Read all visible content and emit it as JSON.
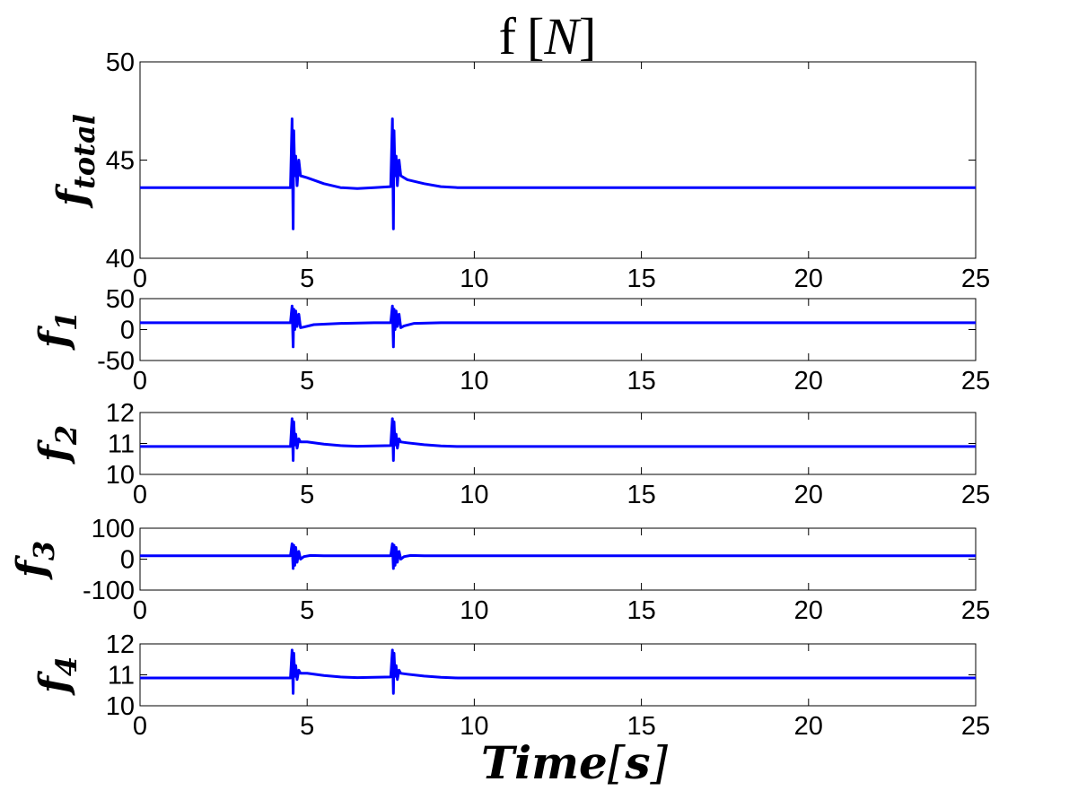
{
  "figure": {
    "title_main": "f",
    "title_unit": "N",
    "xlabel_main": "Time",
    "xlabel_unit": "s"
  },
  "colors": {
    "series": "#0000ff",
    "axes": "#000000",
    "background": "#ffffff"
  },
  "chart_data": [
    {
      "type": "line",
      "ylabel_base": "f",
      "ylabel_sub": "total",
      "xlim": [
        0,
        25
      ],
      "ylim": [
        40,
        50
      ],
      "xticks": [
        "0",
        "5",
        "10",
        "15",
        "20",
        "25"
      ],
      "yticks": [
        "40",
        "45",
        "50"
      ],
      "grid": false,
      "series": [
        {
          "color": "#0000ff",
          "x": [
            0,
            4.5,
            4.55,
            4.58,
            4.6,
            4.63,
            4.66,
            4.7,
            4.75,
            4.8,
            5.0,
            5.5,
            6.0,
            6.5,
            7.0,
            7.5,
            7.55,
            7.58,
            7.6,
            7.63,
            7.66,
            7.7,
            7.75,
            7.8,
            8.0,
            8.5,
            9.0,
            9.5,
            10,
            11,
            12,
            15,
            20,
            25
          ],
          "y": [
            43.6,
            43.6,
            47.1,
            41.5,
            46.5,
            44.2,
            45.2,
            43.7,
            45.0,
            44.2,
            44.1,
            43.8,
            43.6,
            43.55,
            43.6,
            43.65,
            47.1,
            41.5,
            46.5,
            44.2,
            45.2,
            43.7,
            45.0,
            44.2,
            44.0,
            43.8,
            43.65,
            43.6,
            43.6,
            43.6,
            43.6,
            43.6,
            43.6,
            43.6
          ]
        }
      ]
    },
    {
      "type": "line",
      "ylabel_base": "f",
      "ylabel_sub": "1",
      "xlim": [
        0,
        25
      ],
      "ylim": [
        -50,
        50
      ],
      "xticks": [
        "0",
        "5",
        "10",
        "15",
        "20",
        "25"
      ],
      "yticks": [
        "-50",
        "0",
        "50"
      ],
      "grid": false,
      "series": [
        {
          "color": "#0000ff",
          "x": [
            0,
            4.5,
            4.55,
            4.58,
            4.6,
            4.63,
            4.66,
            4.7,
            4.75,
            4.8,
            4.9,
            5.2,
            6.0,
            7.0,
            7.5,
            7.55,
            7.58,
            7.6,
            7.63,
            7.66,
            7.7,
            7.75,
            7.8,
            7.9,
            8.2,
            9.0,
            10,
            15,
            20,
            25
          ],
          "y": [
            11,
            11,
            38,
            -28,
            33,
            0,
            30,
            5,
            25,
            3,
            4,
            8,
            10,
            11,
            11,
            38,
            -28,
            33,
            0,
            30,
            5,
            25,
            3,
            6,
            10,
            11,
            11,
            11,
            11,
            11
          ]
        }
      ]
    },
    {
      "type": "line",
      "ylabel_base": "f",
      "ylabel_sub": "2",
      "xlim": [
        0,
        25
      ],
      "ylim": [
        10,
        12
      ],
      "xticks": [
        "0",
        "5",
        "10",
        "15",
        "20",
        "25"
      ],
      "yticks": [
        "10",
        "11",
        "12"
      ],
      "grid": false,
      "series": [
        {
          "color": "#0000ff",
          "x": [
            0,
            4.5,
            4.55,
            4.58,
            4.6,
            4.63,
            4.66,
            4.7,
            4.75,
            4.8,
            5.0,
            5.5,
            6.0,
            6.5,
            7.0,
            7.5,
            7.55,
            7.58,
            7.6,
            7.63,
            7.66,
            7.7,
            7.75,
            7.8,
            8.0,
            8.5,
            9.0,
            9.5,
            10,
            15,
            20,
            25
          ],
          "y": [
            10.9,
            10.9,
            11.8,
            10.45,
            11.7,
            10.95,
            11.3,
            10.85,
            11.15,
            11.05,
            11.05,
            10.98,
            10.93,
            10.91,
            10.92,
            10.93,
            11.8,
            10.45,
            11.7,
            10.95,
            11.3,
            10.85,
            11.15,
            11.05,
            11.02,
            10.96,
            10.92,
            10.9,
            10.9,
            10.9,
            10.9,
            10.9
          ]
        }
      ]
    },
    {
      "type": "line",
      "ylabel_base": "f",
      "ylabel_sub": "3",
      "xlim": [
        0,
        25
      ],
      "ylim": [
        -100,
        100
      ],
      "xticks": [
        "0",
        "5",
        "10",
        "15",
        "20",
        "25"
      ],
      "yticks": [
        "-100",
        "0",
        "100"
      ],
      "grid": false,
      "series": [
        {
          "color": "#0000ff",
          "x": [
            0,
            4.5,
            4.55,
            4.58,
            4.6,
            4.63,
            4.66,
            4.7,
            4.75,
            4.8,
            4.9,
            5.1,
            5.5,
            7.0,
            7.5,
            7.55,
            7.58,
            7.6,
            7.63,
            7.66,
            7.7,
            7.75,
            7.8,
            7.9,
            8.1,
            8.5,
            10,
            15,
            20,
            25
          ],
          "y": [
            11,
            11,
            50,
            -30,
            45,
            -20,
            38,
            -10,
            25,
            0,
            8,
            12,
            11,
            11,
            11,
            50,
            -30,
            45,
            -20,
            38,
            -10,
            25,
            0,
            8,
            12,
            11,
            11,
            11,
            11,
            11
          ]
        }
      ]
    },
    {
      "type": "line",
      "ylabel_base": "f",
      "ylabel_sub": "4",
      "xlim": [
        0,
        25
      ],
      "ylim": [
        10,
        12
      ],
      "xticks": [
        "0",
        "5",
        "10",
        "15",
        "20",
        "25"
      ],
      "yticks": [
        "10",
        "11",
        "12"
      ],
      "grid": false,
      "series": [
        {
          "color": "#0000ff",
          "x": [
            0,
            4.5,
            4.55,
            4.58,
            4.6,
            4.63,
            4.66,
            4.7,
            4.75,
            4.8,
            5.0,
            5.5,
            6.0,
            6.5,
            7.0,
            7.5,
            7.55,
            7.58,
            7.6,
            7.63,
            7.66,
            7.7,
            7.75,
            7.8,
            8.0,
            8.5,
            9.0,
            9.5,
            10,
            15,
            20,
            25
          ],
          "y": [
            10.9,
            10.9,
            11.8,
            10.4,
            11.7,
            10.95,
            11.3,
            10.85,
            11.15,
            11.05,
            11.05,
            10.98,
            10.93,
            10.91,
            10.92,
            10.93,
            11.8,
            10.4,
            11.7,
            10.95,
            11.3,
            10.85,
            11.15,
            11.05,
            11.02,
            10.96,
            10.92,
            10.9,
            10.9,
            10.9,
            10.9,
            10.9
          ]
        }
      ]
    }
  ]
}
